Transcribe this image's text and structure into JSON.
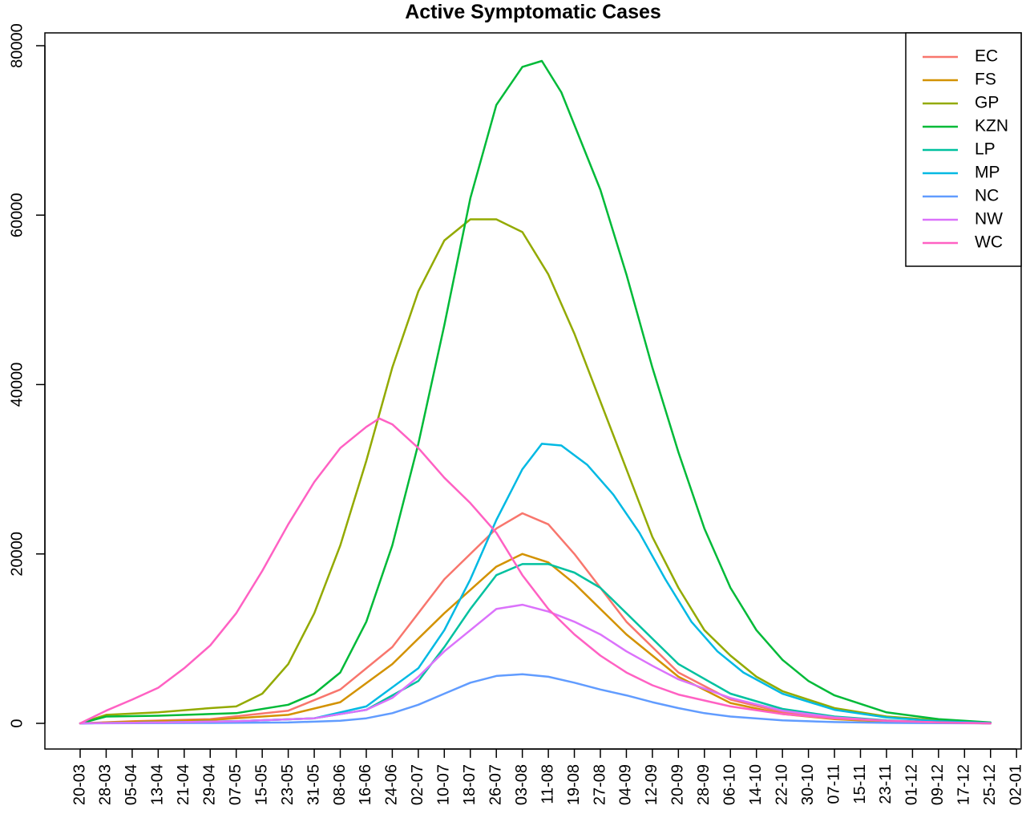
{
  "chart_data": {
    "type": "line",
    "title": "Active Symptomatic Cases",
    "xlabel": "",
    "ylabel": "",
    "ylim": [
      0,
      80000
    ],
    "y_ticks": [
      0,
      20000,
      40000,
      60000,
      80000
    ],
    "y_tick_labels": [
      "0",
      "20000",
      "40000",
      "60000",
      "80000"
    ],
    "x_tick_labels": [
      "20-03",
      "28-03",
      "05-04",
      "13-04",
      "21-04",
      "29-04",
      "07-05",
      "15-05",
      "23-05",
      "31-05",
      "08-06",
      "16-06",
      "24-06",
      "02-07",
      "10-07",
      "18-07",
      "26-07",
      "03-08",
      "11-08",
      "19-08",
      "27-08",
      "04-09",
      "12-09",
      "20-09",
      "28-09",
      "06-10",
      "14-10",
      "22-10",
      "30-10",
      "07-11",
      "15-11",
      "23-11",
      "01-12",
      "09-12",
      "17-12",
      "25-12",
      "02-01"
    ],
    "x_unit": "days since 20-03 (tick every 8 days)",
    "grid": false,
    "legend_position": "top-right",
    "series": [
      {
        "name": "EC",
        "color": "#F8766D",
        "points": [
          [
            0,
            0
          ],
          [
            16,
            250
          ],
          [
            40,
            500
          ],
          [
            64,
            1500
          ],
          [
            80,
            4000
          ],
          [
            96,
            9000
          ],
          [
            112,
            17000
          ],
          [
            128,
            23000
          ],
          [
            136,
            24800
          ],
          [
            144,
            23500
          ],
          [
            152,
            20000
          ],
          [
            168,
            12000
          ],
          [
            184,
            6000
          ],
          [
            200,
            2800
          ],
          [
            216,
            1300
          ],
          [
            232,
            600
          ],
          [
            248,
            250
          ],
          [
            264,
            100
          ],
          [
            280,
            0
          ]
        ]
      },
      {
        "name": "FS",
        "color": "#D39200",
        "points": [
          [
            0,
            0
          ],
          [
            16,
            200
          ],
          [
            40,
            400
          ],
          [
            64,
            1000
          ],
          [
            80,
            2500
          ],
          [
            96,
            7000
          ],
          [
            112,
            13000
          ],
          [
            128,
            18500
          ],
          [
            136,
            20000
          ],
          [
            144,
            19000
          ],
          [
            152,
            16500
          ],
          [
            168,
            10500
          ],
          [
            184,
            5500
          ],
          [
            200,
            2400
          ],
          [
            216,
            1100
          ],
          [
            232,
            500
          ],
          [
            248,
            200
          ],
          [
            264,
            80
          ],
          [
            280,
            0
          ]
        ]
      },
      {
        "name": "GP",
        "color": "#93AA00",
        "points": [
          [
            0,
            0
          ],
          [
            8,
            1000
          ],
          [
            24,
            1300
          ],
          [
            40,
            1800
          ],
          [
            48,
            2000
          ],
          [
            56,
            3500
          ],
          [
            64,
            7000
          ],
          [
            72,
            13000
          ],
          [
            80,
            21000
          ],
          [
            88,
            31000
          ],
          [
            96,
            42000
          ],
          [
            104,
            51000
          ],
          [
            112,
            57000
          ],
          [
            120,
            59500
          ],
          [
            128,
            59500
          ],
          [
            136,
            58000
          ],
          [
            144,
            53000
          ],
          [
            152,
            46000
          ],
          [
            160,
            38000
          ],
          [
            168,
            30000
          ],
          [
            176,
            22000
          ],
          [
            184,
            16000
          ],
          [
            192,
            11000
          ],
          [
            200,
            8000
          ],
          [
            208,
            5500
          ],
          [
            216,
            3800
          ],
          [
            232,
            1800
          ],
          [
            248,
            800
          ],
          [
            264,
            350
          ],
          [
            280,
            0
          ]
        ]
      },
      {
        "name": "KZN",
        "color": "#00BA38",
        "points": [
          [
            0,
            0
          ],
          [
            8,
            800
          ],
          [
            24,
            900
          ],
          [
            48,
            1200
          ],
          [
            64,
            2200
          ],
          [
            72,
            3500
          ],
          [
            80,
            6000
          ],
          [
            88,
            12000
          ],
          [
            96,
            21000
          ],
          [
            104,
            33000
          ],
          [
            112,
            47000
          ],
          [
            120,
            62000
          ],
          [
            128,
            73000
          ],
          [
            136,
            77500
          ],
          [
            142,
            78200
          ],
          [
            148,
            74500
          ],
          [
            160,
            63000
          ],
          [
            168,
            53000
          ],
          [
            176,
            42000
          ],
          [
            184,
            32000
          ],
          [
            192,
            23000
          ],
          [
            200,
            16000
          ],
          [
            208,
            11000
          ],
          [
            216,
            7500
          ],
          [
            224,
            5000
          ],
          [
            232,
            3300
          ],
          [
            248,
            1300
          ],
          [
            264,
            500
          ],
          [
            280,
            100
          ]
        ]
      },
      {
        "name": "LP",
        "color": "#00C19F",
        "points": [
          [
            0,
            0
          ],
          [
            24,
            100
          ],
          [
            48,
            250
          ],
          [
            72,
            600
          ],
          [
            88,
            1600
          ],
          [
            104,
            5000
          ],
          [
            112,
            9000
          ],
          [
            120,
            13500
          ],
          [
            128,
            17500
          ],
          [
            136,
            18800
          ],
          [
            144,
            18800
          ],
          [
            152,
            17800
          ],
          [
            160,
            16000
          ],
          [
            168,
            13000
          ],
          [
            176,
            10000
          ],
          [
            184,
            7000
          ],
          [
            200,
            3500
          ],
          [
            216,
            1700
          ],
          [
            232,
            800
          ],
          [
            248,
            350
          ],
          [
            264,
            120
          ],
          [
            280,
            0
          ]
        ]
      },
      {
        "name": "MP",
        "color": "#00B9E3",
        "points": [
          [
            0,
            0
          ],
          [
            24,
            100
          ],
          [
            48,
            250
          ],
          [
            72,
            600
          ],
          [
            88,
            2000
          ],
          [
            104,
            6500
          ],
          [
            112,
            11000
          ],
          [
            120,
            17000
          ],
          [
            128,
            24000
          ],
          [
            136,
            30000
          ],
          [
            142,
            33000
          ],
          [
            148,
            32800
          ],
          [
            156,
            30500
          ],
          [
            164,
            27000
          ],
          [
            172,
            22500
          ],
          [
            180,
            17000
          ],
          [
            188,
            12000
          ],
          [
            196,
            8500
          ],
          [
            204,
            6000
          ],
          [
            216,
            3500
          ],
          [
            232,
            1600
          ],
          [
            248,
            700
          ],
          [
            264,
            250
          ],
          [
            280,
            50
          ]
        ]
      },
      {
        "name": "NC",
        "color": "#619CFF",
        "points": [
          [
            0,
            0
          ],
          [
            40,
            50
          ],
          [
            64,
            100
          ],
          [
            80,
            300
          ],
          [
            88,
            600
          ],
          [
            96,
            1200
          ],
          [
            104,
            2200
          ],
          [
            112,
            3500
          ],
          [
            120,
            4800
          ],
          [
            128,
            5600
          ],
          [
            136,
            5800
          ],
          [
            144,
            5500
          ],
          [
            152,
            4800
          ],
          [
            160,
            4000
          ],
          [
            168,
            3300
          ],
          [
            176,
            2500
          ],
          [
            184,
            1800
          ],
          [
            192,
            1200
          ],
          [
            200,
            800
          ],
          [
            216,
            350
          ],
          [
            232,
            150
          ],
          [
            248,
            60
          ],
          [
            280,
            0
          ]
        ]
      },
      {
        "name": "NW",
        "color": "#DB72FB",
        "points": [
          [
            0,
            0
          ],
          [
            24,
            100
          ],
          [
            48,
            250
          ],
          [
            72,
            600
          ],
          [
            88,
            1600
          ],
          [
            96,
            3000
          ],
          [
            104,
            5500
          ],
          [
            112,
            8500
          ],
          [
            120,
            11000
          ],
          [
            128,
            13500
          ],
          [
            136,
            14000
          ],
          [
            144,
            13200
          ],
          [
            152,
            12000
          ],
          [
            160,
            10500
          ],
          [
            168,
            8500
          ],
          [
            176,
            6800
          ],
          [
            184,
            5200
          ],
          [
            200,
            3000
          ],
          [
            216,
            1500
          ],
          [
            232,
            700
          ],
          [
            248,
            300
          ],
          [
            264,
            100
          ],
          [
            280,
            0
          ]
        ]
      },
      {
        "name": "WC",
        "color": "#FF61C3",
        "points": [
          [
            0,
            0
          ],
          [
            8,
            1500
          ],
          [
            16,
            2800
          ],
          [
            24,
            4200
          ],
          [
            32,
            6500
          ],
          [
            40,
            9200
          ],
          [
            48,
            13000
          ],
          [
            56,
            18000
          ],
          [
            64,
            23500
          ],
          [
            72,
            28500
          ],
          [
            80,
            32500
          ],
          [
            88,
            35000
          ],
          [
            92,
            36000
          ],
          [
            96,
            35300
          ],
          [
            104,
            32500
          ],
          [
            112,
            29000
          ],
          [
            120,
            26000
          ],
          [
            128,
            22500
          ],
          [
            136,
            17500
          ],
          [
            144,
            13500
          ],
          [
            152,
            10500
          ],
          [
            160,
            8000
          ],
          [
            168,
            6000
          ],
          [
            176,
            4500
          ],
          [
            184,
            3400
          ],
          [
            200,
            2000
          ],
          [
            216,
            1100
          ],
          [
            232,
            600
          ],
          [
            248,
            300
          ],
          [
            264,
            120
          ],
          [
            280,
            0
          ]
        ]
      }
    ]
  }
}
